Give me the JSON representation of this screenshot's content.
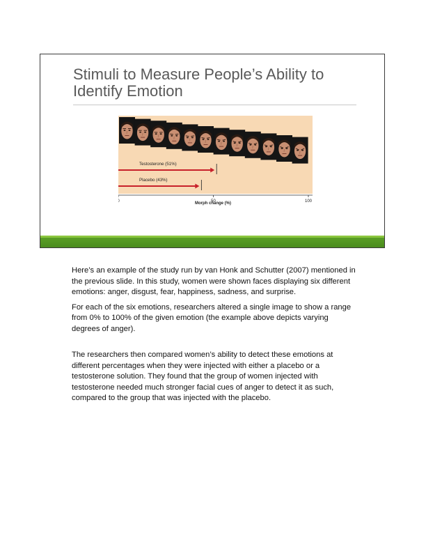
{
  "slide": {
    "title": "Stimuli to Measure People’s Ability to Identify Emotion",
    "colors": {
      "figure_bg": "#f8d9b4",
      "arrow": "#c8202a",
      "accent_bar": "#4a8c1e"
    }
  },
  "chart_data": {
    "type": "bar",
    "orientation": "horizontal",
    "categories": [
      "Testosterone (51%)",
      "Placebo (43%)"
    ],
    "values": [
      51,
      43
    ],
    "xlabel": "Morph change (%)",
    "xlim": [
      0,
      100
    ],
    "xticks": [
      0,
      50,
      100
    ],
    "face_images": 12
  },
  "notes": {
    "p1": "Here’s an example of the study run by van Honk and Schutter (2007) mentioned in the previous slide. In this study, women were shown faces displaying six different emotions: anger, disgust, fear, happiness, sadness, and surprise.",
    "p2": "For each of the six emotions, researchers altered a single image to show a range from 0% to 100% of the given emotion (the example above depicts varying degrees of anger).",
    "p3": "The researchers then compared women’s ability to detect these emotions at different percentages when they were injected with either a placebo or a testosterone solution. They found that the group of women injected with testosterone needed much stronger facial cues of anger to detect it as such, compared to the group that was injected with the placebo."
  }
}
